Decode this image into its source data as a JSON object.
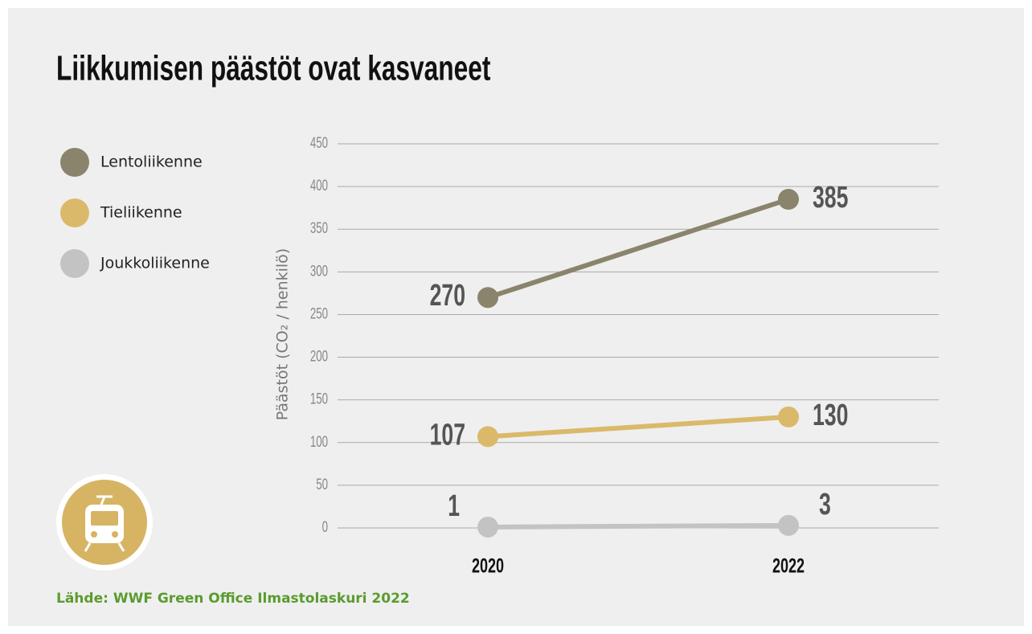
{
  "chart_data": {
    "type": "line",
    "title": "Liikkumisen päästöt ovat kasvaneet",
    "y_label": "Päästöt (CO₂ / henkilö)",
    "source": "Lähde: WWF Green Office Ilmastolaskuri 2022",
    "categories": [
      "2020",
      "2022"
    ],
    "series": [
      {
        "name": "Lentoliikenne",
        "color": "#8a846d",
        "values": [
          270,
          385
        ]
      },
      {
        "name": "Tieliikenne",
        "color": "#dab96a",
        "values": [
          107,
          130
        ]
      },
      {
        "name": "Joukkoliikenne",
        "color": "#c3c3c3",
        "values": [
          1,
          3
        ]
      }
    ],
    "ylim": [
      0,
      450
    ],
    "yticks": [
      0,
      50,
      100,
      150,
      200,
      250,
      300,
      350,
      400,
      450
    ],
    "grid": true,
    "legend": "left"
  }
}
